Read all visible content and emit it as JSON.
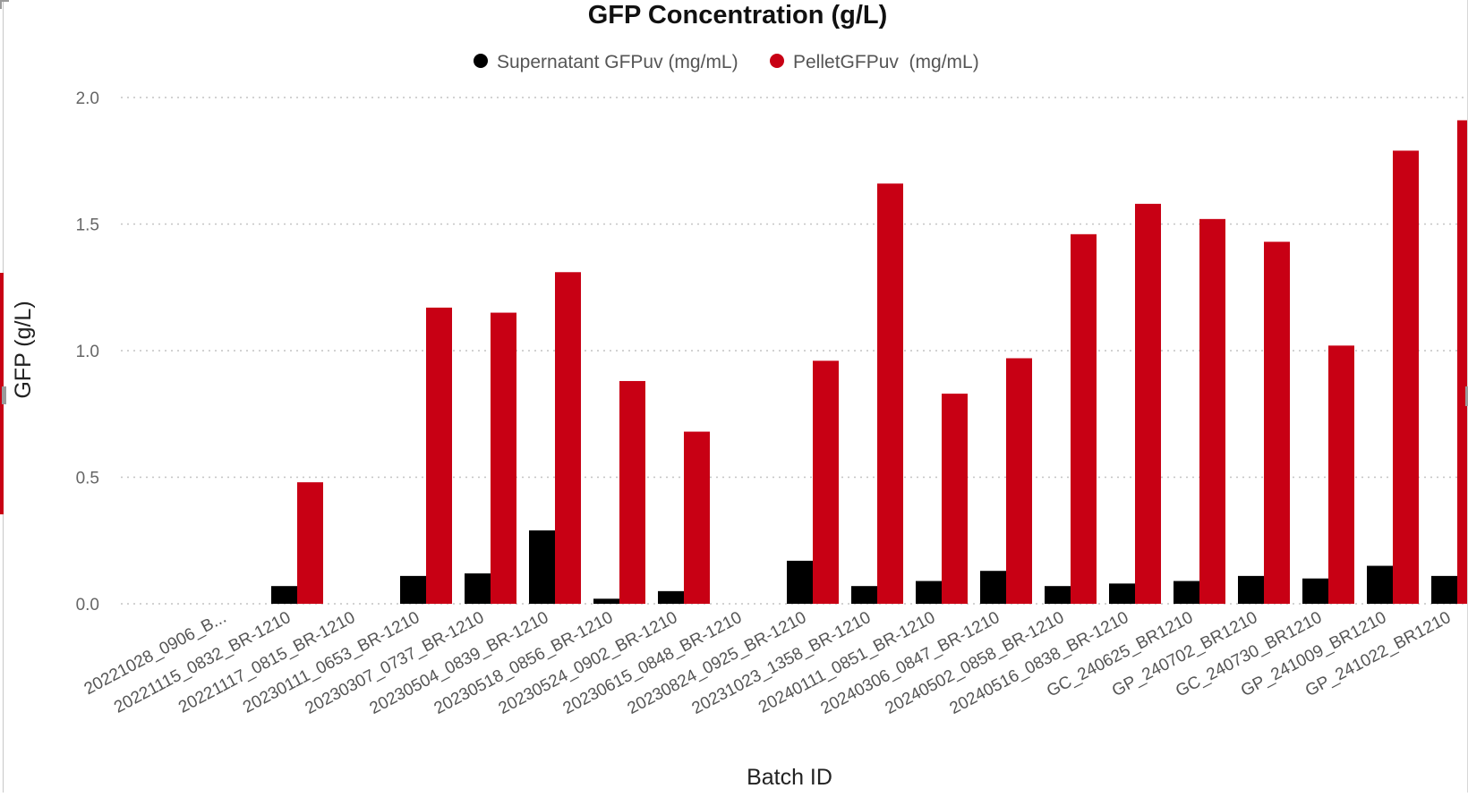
{
  "chart_data": {
    "type": "bar",
    "title": "GFP Concentration (g/L)",
    "xlabel": "Batch ID",
    "ylabel": "GFP (g/L)",
    "ylim": [
      0,
      2.0
    ],
    "yticks": [
      "0.0",
      "0.5",
      "1.0",
      "1.5",
      "2.0"
    ],
    "grid": true,
    "legend_position": "top-center",
    "categories": [
      "20221028_0906_B...",
      "20221115_0832_BR-1210",
      "20221117_0815_BR-1210",
      "20230111_0653_BR-1210",
      "20230307_0737_BR-1210",
      "20230504_0839_BR-1210",
      "20230518_0856_BR-1210",
      "20230524_0902_BR-1210",
      "20230615_0848_BR-1210",
      "20230824_0925_BR-1210",
      "20231023_1358_BR-1210",
      "20240111_0851_BR-1210",
      "20240306_0847_BR-1210",
      "20240502_0858_BR-1210",
      "20240516_0838_BR-1210",
      "GC_240625_BR1210",
      "GP_240702_BR1210",
      "GC_240730_BR1210",
      "GP_241009_BR1210",
      "GP_241022_BR1210"
    ],
    "series": [
      {
        "name": "Supernatant GFPuv (mg/mL)",
        "color": "#000000",
        "values": [
          null,
          0.07,
          null,
          0.11,
          0.12,
          0.29,
          0.02,
          0.05,
          null,
          0.17,
          0.07,
          0.09,
          0.13,
          0.07,
          0.08,
          0.09,
          0.11,
          0.1,
          0.15,
          0.11
        ]
      },
      {
        "name": "PelletGFPuv  (mg/mL)",
        "color": "#c80014",
        "values": [
          null,
          0.48,
          null,
          1.17,
          1.15,
          1.31,
          0.88,
          0.68,
          null,
          0.96,
          1.66,
          0.83,
          0.97,
          1.46,
          1.58,
          1.52,
          1.43,
          1.02,
          1.79,
          1.91
        ]
      }
    ]
  }
}
